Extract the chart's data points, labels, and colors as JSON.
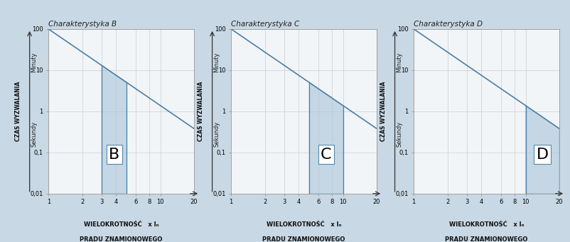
{
  "background_color": "#c8d8e4",
  "plot_bg_color": "#f2f5f8",
  "grid_color": "#cccccc",
  "curve_color": "#4a7fa8",
  "fill_color": "#aec8dc",
  "fill_alpha": 0.65,
  "charts": [
    {
      "title": "Charakterystyka B",
      "label": "B",
      "xticks": [
        1,
        2,
        3,
        4,
        6,
        8,
        10,
        20
      ],
      "shade_xmin": 3,
      "shade_xmax": 5
    },
    {
      "title": "Charakterystyka C",
      "label": "C",
      "xticks": [
        1,
        2,
        3,
        4,
        6,
        8,
        10,
        20
      ],
      "shade_xmin": 5,
      "shade_xmax": 10
    },
    {
      "title": "Charakterystyka D",
      "label": "D",
      "xticks": [
        1,
        2,
        3,
        4,
        6,
        8,
        10,
        20
      ],
      "shade_xmin": 10,
      "shade_xmax": 20
    }
  ],
  "xlim": [
    1,
    20
  ],
  "ylim": [
    0.01,
    100
  ],
  "yticks": [
    0.01,
    0.1,
    1,
    10,
    100
  ],
  "ytick_labels": [
    "0,01",
    "0,1",
    "1",
    "10",
    "100"
  ],
  "ylabel_main": "CZAS WYZWALANIA",
  "ylabel_minutes": "Minuty",
  "ylabel_seconds": "Sekundy",
  "xlabel_line1": "WIELOKROTNOŚĆ   x Iₙ",
  "xlabel_line2": "PRĄDU ZNAMIONOWEGO",
  "title_fontsize": 7.5,
  "label_fontsize": 16,
  "axis_fontsize": 6,
  "ylabel_fontsize": 5.5,
  "curve_k": 100,
  "curve_n": 1.86
}
